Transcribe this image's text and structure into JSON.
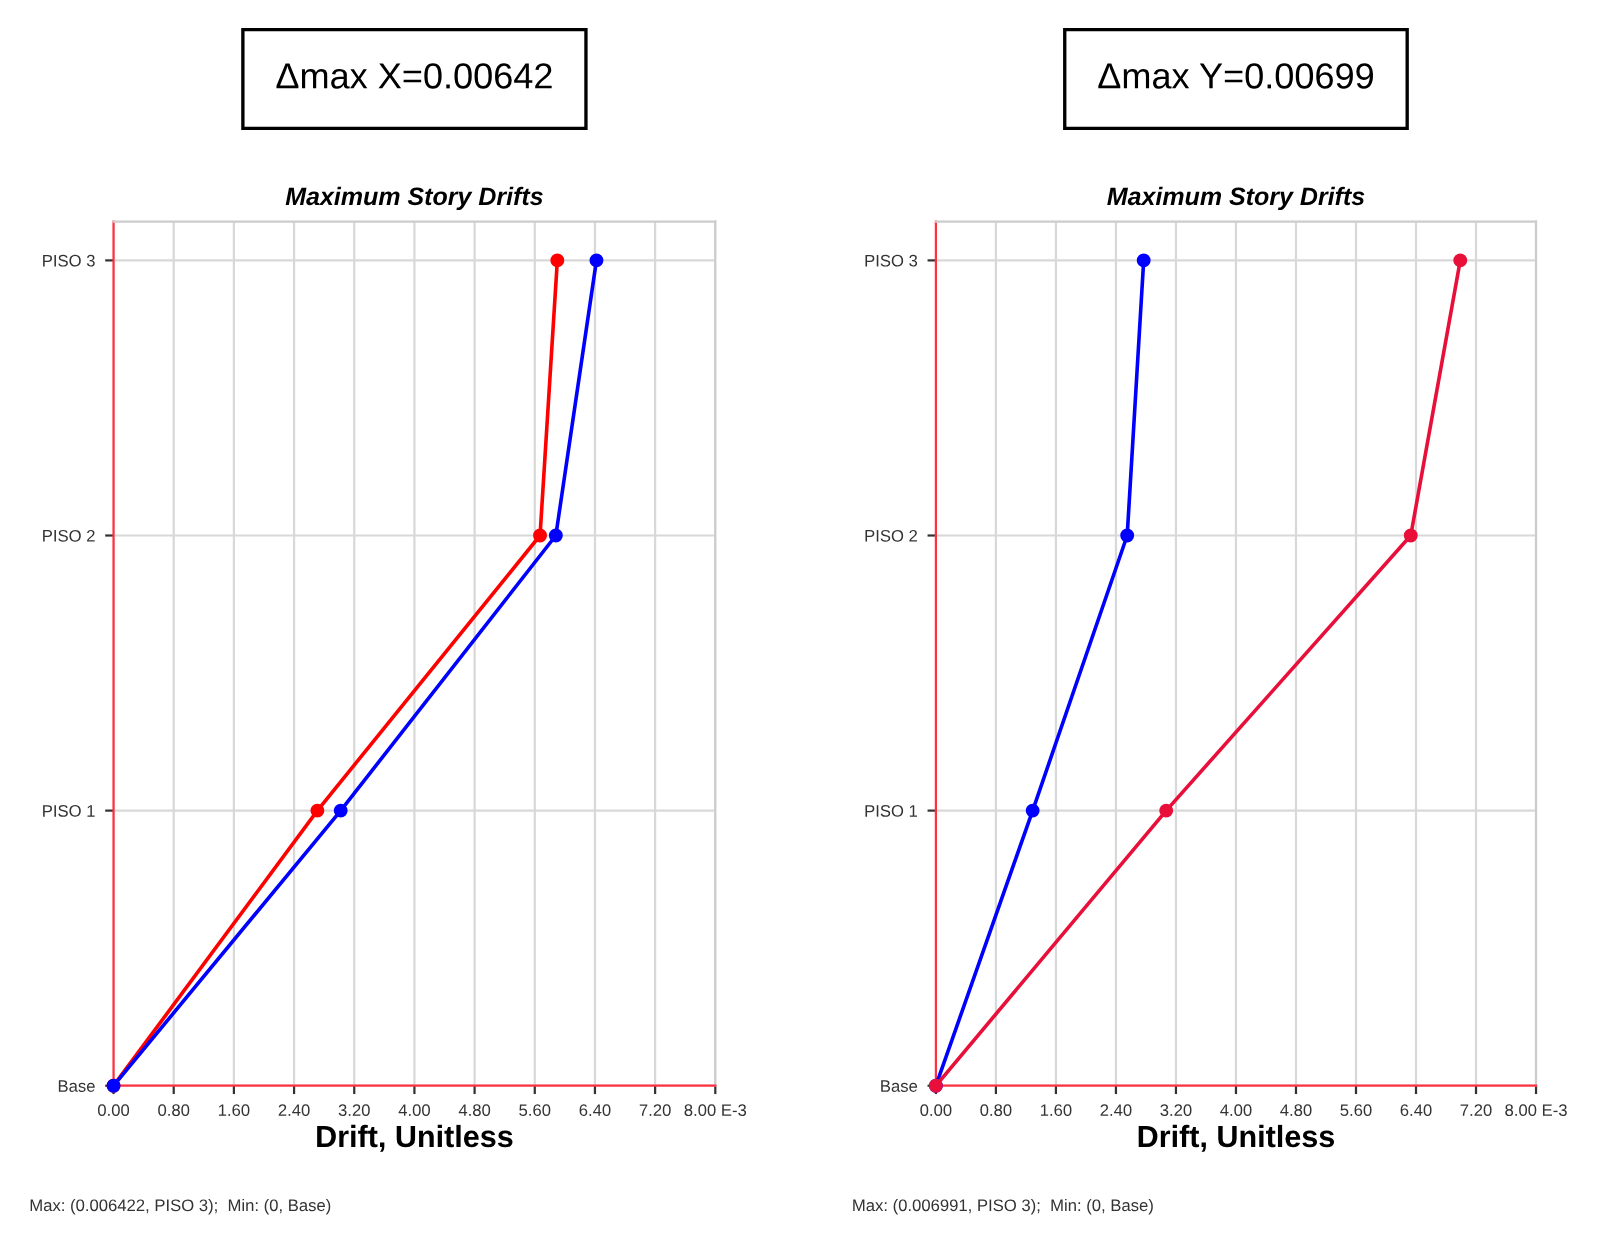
{
  "chart_data": [
    {
      "type": "line",
      "orientation": "horizontal",
      "title": "Maximum Story Drifts",
      "subtitle": "Δmax X=0.00642",
      "xlabel": "Drift, Unitless",
      "xlim": [
        0,
        8
      ],
      "xticks": [
        {
          "value": 0,
          "label": "0.00"
        },
        {
          "value": 0.8,
          "label": "0.80"
        },
        {
          "value": 1.6,
          "label": "1.60"
        },
        {
          "value": 2.4,
          "label": "2.40"
        },
        {
          "value": 3.2,
          "label": "3.20"
        },
        {
          "value": 4.0,
          "label": "4.00"
        },
        {
          "value": 4.8,
          "label": "4.80"
        },
        {
          "value": 5.6,
          "label": "5.60"
        },
        {
          "value": 6.4,
          "label": "6.40"
        },
        {
          "value": 7.2,
          "label": "7.20"
        },
        {
          "value": 8.0,
          "label": "8.00 E-3"
        }
      ],
      "categories": [
        "PISO 3",
        "PISO 2",
        "PISO 1",
        "Base"
      ],
      "series": [
        {
          "color": "#ff0000",
          "values": [
            5.9,
            5.67,
            2.71,
            0
          ]
        },
        {
          "color": "#0000ff",
          "values": [
            6.42,
            5.88,
            3.02,
            0
          ]
        }
      ],
      "marker": "circle",
      "line_style": "solid",
      "grid": true,
      "annotations": [
        "Max: (0.006422, PISO 3);  Min: (0, Base)"
      ]
    },
    {
      "type": "line",
      "orientation": "horizontal",
      "title": "Maximum Story Drifts",
      "subtitle": "Δmax Y=0.00699",
      "xlabel": "Drift, Unitless",
      "xlim": [
        0,
        8
      ],
      "xticks": [
        {
          "value": 0,
          "label": "0.00"
        },
        {
          "value": 0.8,
          "label": "0.80"
        },
        {
          "value": 1.6,
          "label": "1.60"
        },
        {
          "value": 2.4,
          "label": "2.40"
        },
        {
          "value": 3.2,
          "label": "3.20"
        },
        {
          "value": 4.0,
          "label": "4.00"
        },
        {
          "value": 4.8,
          "label": "4.80"
        },
        {
          "value": 5.6,
          "label": "5.60"
        },
        {
          "value": 6.4,
          "label": "6.40"
        },
        {
          "value": 7.2,
          "label": "7.20"
        },
        {
          "value": 8.0,
          "label": "8.00 E-3"
        }
      ],
      "categories": [
        "PISO 3",
        "PISO 2",
        "PISO 1",
        "Base"
      ],
      "series": [
        {
          "color": "#0000ff",
          "values": [
            2.77,
            2.55,
            1.29,
            0
          ]
        },
        {
          "color": "#e8103a",
          "values": [
            6.99,
            6.33,
            3.07,
            0
          ]
        }
      ],
      "marker": "circle",
      "line_style": "solid",
      "grid": true,
      "annotations": [
        "Max: (0.006991, PISO 3);  Min: (0, Base)"
      ]
    }
  ]
}
